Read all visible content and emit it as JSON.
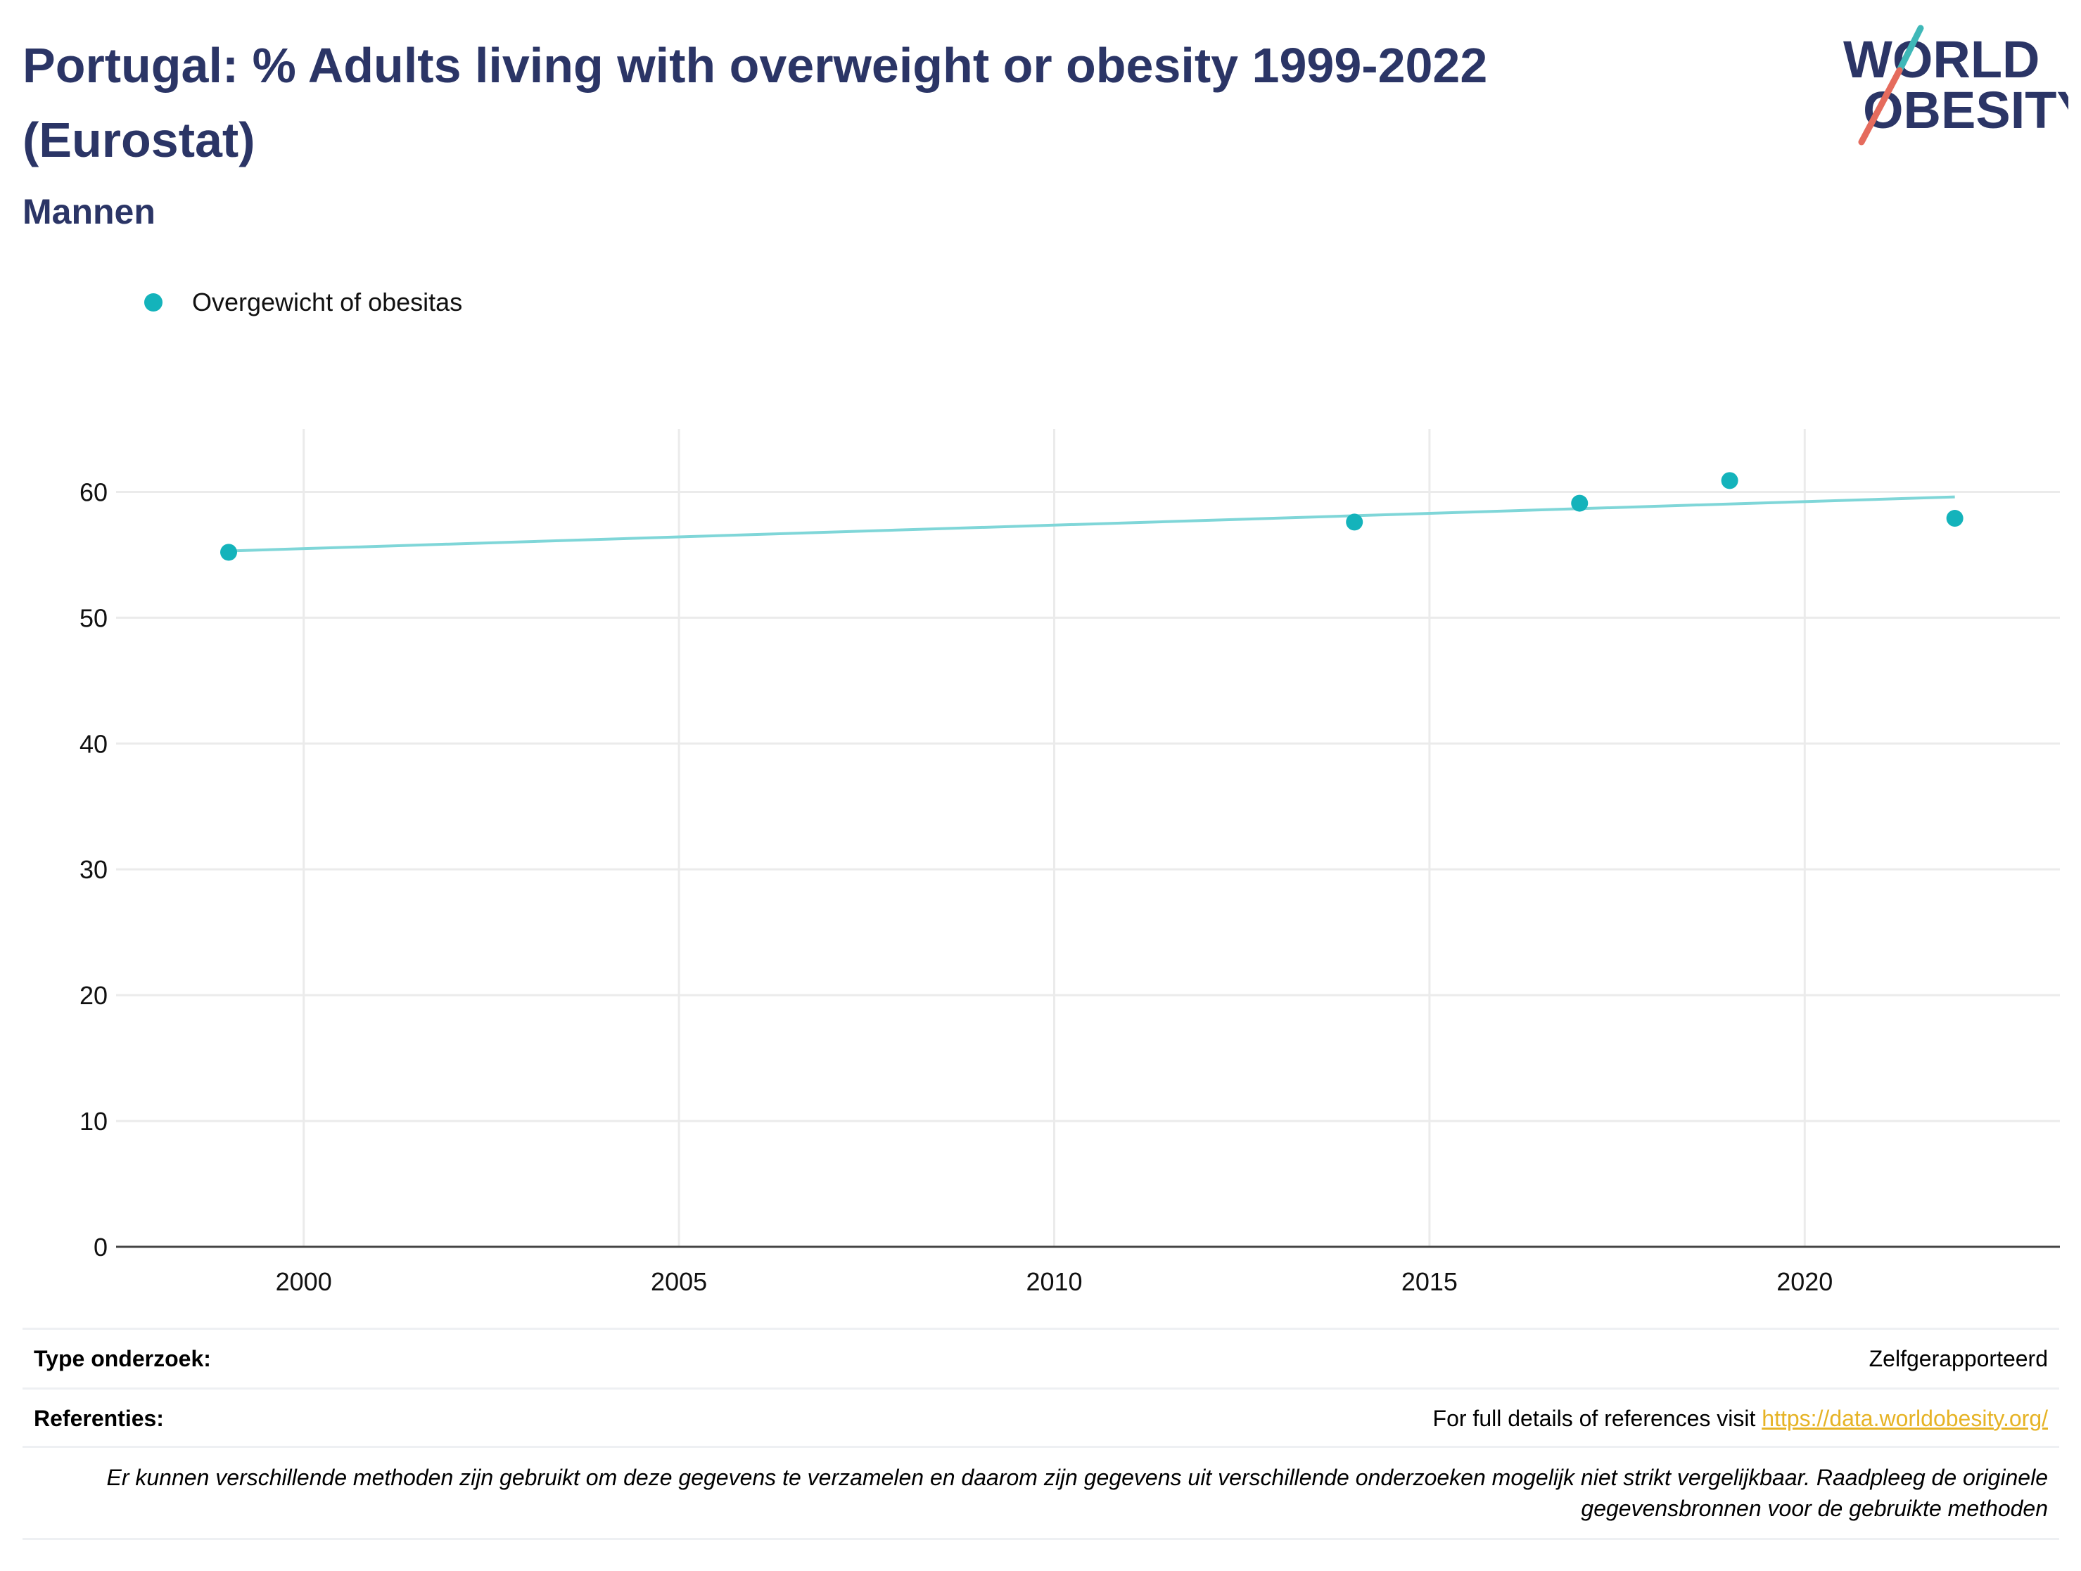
{
  "header": {
    "title": "Portugal: % Adults living with overweight or obesity 1999-2022 (Eurostat)",
    "subtitle": "Mannen"
  },
  "logo": {
    "line1": "WORLD",
    "line2": "OBESITY"
  },
  "colors": {
    "title": "#2b3566",
    "series": "#14b3bb",
    "trend": "#7fd6d8",
    "grid": "#ebebeb",
    "link": "#e6b325"
  },
  "chart_data": {
    "type": "scatter",
    "title": "Portugal: % Adults living with overweight or obesity 1999-2022 (Eurostat)",
    "subtitle": "Mannen",
    "xlabel": "",
    "ylabel": "",
    "xlim": [
      1997.5,
      2023.4
    ],
    "ylim": [
      0,
      65
    ],
    "xticks": [
      2000,
      2005,
      2010,
      2015,
      2020
    ],
    "yticks": [
      0,
      10,
      20,
      30,
      40,
      50,
      60
    ],
    "grid": true,
    "legend_position": "top-left",
    "series": [
      {
        "name": "Overgewicht of obesitas",
        "color": "#14b3bb",
        "points": [
          {
            "x": 1999,
            "y": 55.2
          },
          {
            "x": 2014,
            "y": 57.6
          },
          {
            "x": 2017,
            "y": 59.1
          },
          {
            "x": 2019,
            "y": 60.9
          },
          {
            "x": 2022,
            "y": 57.9
          }
        ]
      }
    ],
    "trendline": {
      "color": "#7fd6d8",
      "points": [
        {
          "x": 1999,
          "y": 55.3
        },
        {
          "x": 2022,
          "y": 59.6
        }
      ]
    }
  },
  "footer": {
    "type_label": "Type onderzoek:",
    "type_value": "Zelfgerapporteerd",
    "ref_label": "Referenties:",
    "ref_text": "For full details of references visit ",
    "ref_link": "https://data.worldobesity.org/",
    "note": "Er kunnen verschillende methoden zijn gebruikt om deze gegevens te verzamelen en daarom zijn gegevens uit verschillende onderzoeken mogelijk niet strikt vergelijkbaar. Raadpleeg de originele gegevensbronnen voor de gebruikte methoden"
  }
}
